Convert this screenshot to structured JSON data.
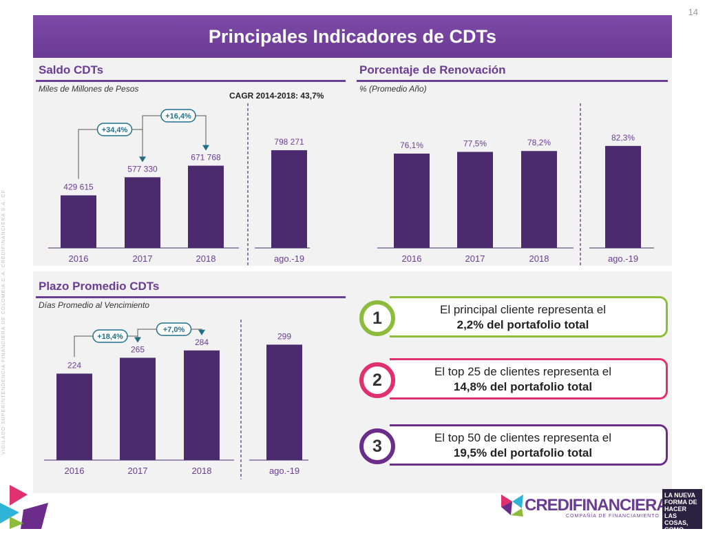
{
  "page_number": "14",
  "title": "Principales Indicadores de CDTs",
  "saldo": {
    "title": "Saldo CDTs",
    "subtitle": "Miles de Millones de Pesos",
    "cagr": "CAGR 2014-2018: 43,7%",
    "growth": [
      "+34,4%",
      "+16,4%"
    ]
  },
  "renovacion": {
    "title": "Porcentaje de Renovación",
    "subtitle": "% (Promedio Año)"
  },
  "plazo": {
    "title": "Plazo Promedio CDTs",
    "subtitle": "Días Promedio al Vencimiento",
    "growth": [
      "+18,4%",
      "+7,0%"
    ]
  },
  "cards": [
    {
      "number": "1",
      "line1": "El principal cliente representa el",
      "line2": "2,2% del portafolio total",
      "color": "#8dbb3c"
    },
    {
      "number": "2",
      "line1": "El top 25 de clientes representa el",
      "line2": "14,8% del portafolio total",
      "color": "#e0306e"
    },
    {
      "number": "3",
      "line1": "El top 50 de clientes representa el",
      "line2": "19,5% del portafolio total",
      "color": "#6b2c8a"
    }
  ],
  "side_text": "VIGILADO  SUPERINTENDENCIA FINANCIERA DE COLOMBIA      C.A. CREDIFINANCIERA S.A. CF",
  "logo": {
    "name": "CREDIFINANCIERA",
    "tagline": "COMPAÑÍA DE FINANCIAMIENTO"
  },
  "slogan": "LA NUEVA FORMA DE HACER LAS COSAS, COMO ANTES.",
  "colors": {
    "accent": "#6b3c94",
    "bar": "#4b2a6e",
    "growth": "#1f6e8a"
  },
  "chart_data": [
    {
      "type": "bar",
      "title": "Saldo CDTs",
      "categories": [
        "2016",
        "2017",
        "2018",
        "ago.-19"
      ],
      "values": [
        429615,
        577330,
        671768,
        798271
      ],
      "labels": [
        "429 615",
        "577 330",
        "671 768",
        "798 271"
      ],
      "ylim": [
        0,
        900000
      ]
    },
    {
      "type": "bar",
      "title": "Porcentaje de Renovación",
      "categories": [
        "2016",
        "2017",
        "2018",
        "ago.-19"
      ],
      "values": [
        76.1,
        77.5,
        78.2,
        82.3
      ],
      "labels": [
        "76,1%",
        "77,5%",
        "78,2%",
        "82,3%"
      ],
      "ylim": [
        0,
        100
      ]
    },
    {
      "type": "bar",
      "title": "Plazo Promedio CDTs",
      "categories": [
        "2016",
        "2017",
        "2018",
        "ago.-19"
      ],
      "values": [
        224,
        265,
        284,
        299
      ],
      "labels": [
        "224",
        "265",
        "284",
        "299"
      ],
      "ylim": [
        0,
        330
      ]
    }
  ]
}
